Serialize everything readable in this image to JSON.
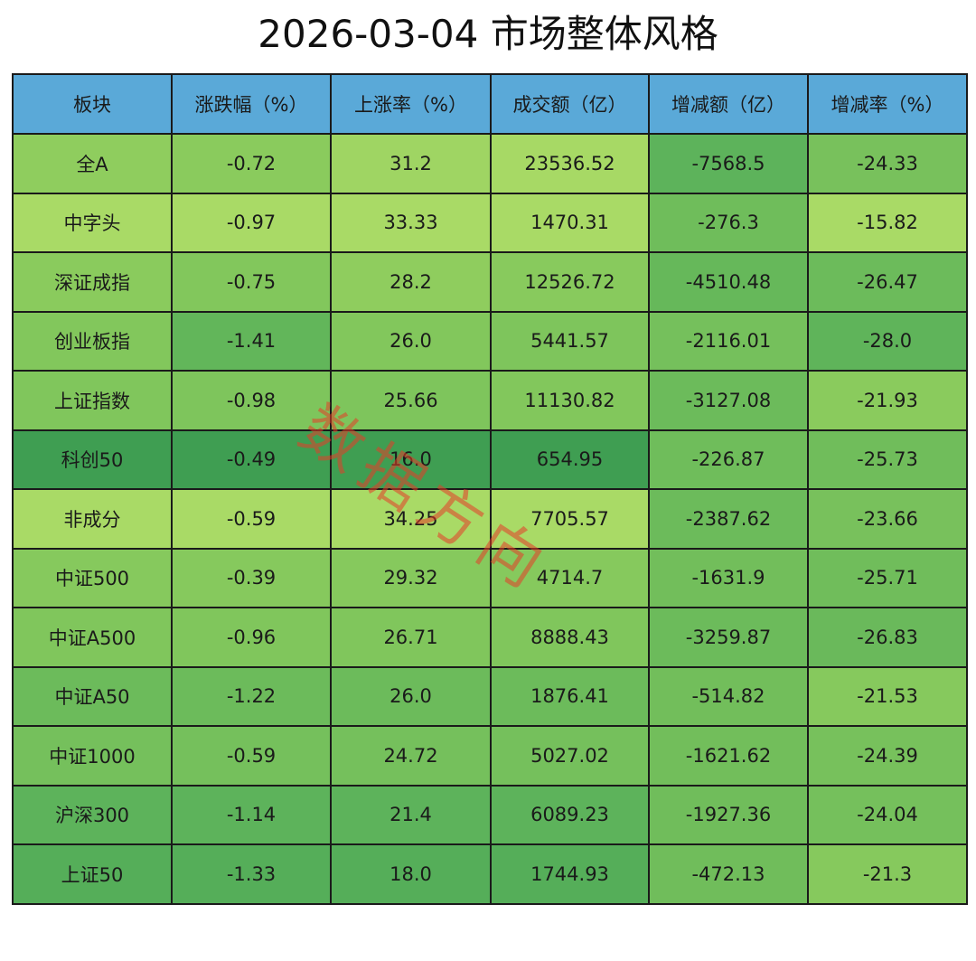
{
  "title": "2026-03-04 市场整体风格",
  "watermark": "数据方向",
  "chart_data": {
    "type": "table",
    "title": "2026-03-04 市场整体风格",
    "columns": [
      "板块",
      "涨跌幅（%）",
      "上涨率（%）",
      "成交额（亿）",
      "增减额（亿）",
      "增减率（%）"
    ],
    "rows": [
      [
        "全A",
        "-0.72",
        "31.2",
        "23536.52",
        "-7568.5",
        "-24.33"
      ],
      [
        "中字头",
        "-0.97",
        "33.33",
        "1470.31",
        "-276.3",
        "-15.82"
      ],
      [
        "深证成指",
        "-0.75",
        "28.2",
        "12526.72",
        "-4510.48",
        "-26.47"
      ],
      [
        "创业板指",
        "-1.41",
        "26.0",
        "5441.57",
        "-2116.01",
        "-28.0"
      ],
      [
        "上证指数",
        "-0.98",
        "25.66",
        "11130.82",
        "-3127.08",
        "-21.93"
      ],
      [
        "科创50",
        "-0.49",
        "16.0",
        "654.95",
        "-226.87",
        "-25.73"
      ],
      [
        "非成分",
        "-0.59",
        "34.25",
        "7705.57",
        "-2387.62",
        "-23.66"
      ],
      [
        "中证500",
        "-0.39",
        "29.32",
        "4714.7",
        "-1631.9",
        "-25.71"
      ],
      [
        "中证A500",
        "-0.96",
        "26.71",
        "8888.43",
        "-3259.87",
        "-26.83"
      ],
      [
        "中证A50",
        "-1.22",
        "26.0",
        "1876.41",
        "-514.82",
        "-21.53"
      ],
      [
        "中证1000",
        "-0.59",
        "24.72",
        "5027.02",
        "-1621.62",
        "-24.39"
      ],
      [
        "沪深300",
        "-1.14",
        "21.4",
        "6089.23",
        "-1927.36",
        "-24.04"
      ],
      [
        "上证50",
        "-1.33",
        "18.0",
        "1744.93",
        "-472.13",
        "-21.3"
      ]
    ],
    "header_color": "#5aa9d8",
    "cell_colors": [
      [
        "#8fcd5e",
        "#8acb5d",
        "#9fd563",
        "#a7d965",
        "#5db35b",
        "#78c15c"
      ],
      [
        "#a9da66",
        "#a9da66",
        "#a9da66",
        "#a9da66",
        "#6fbd5b",
        "#a9da66"
      ],
      [
        "#8acb5d",
        "#82c75c",
        "#8fcd5e",
        "#88ca5d",
        "#66b85a",
        "#6cbb5b"
      ],
      [
        "#82c75c",
        "#62b65a",
        "#82c75c",
        "#7ec55c",
        "#75c05c",
        "#5fb45a"
      ],
      [
        "#80c65c",
        "#7ec55c",
        "#7ec55c",
        "#82c75c",
        "#6cbb5b",
        "#8acb5d"
      ],
      [
        "#3f9e52",
        "#3f9e52",
        "#3f9e52",
        "#3f9e52",
        "#6fbd5b",
        "#70bd5b"
      ],
      [
        "#a9da66",
        "#a9da66",
        "#a9da66",
        "#a9da66",
        "#6cbb5b",
        "#78c15c"
      ],
      [
        "#86c95d",
        "#86c95d",
        "#86c95d",
        "#86c95d",
        "#72be5b",
        "#70bd5b"
      ],
      [
        "#80c65c",
        "#80c65c",
        "#80c65c",
        "#80c65c",
        "#6cbb5b",
        "#6ab95b"
      ],
      [
        "#6cbb5b",
        "#6cbb5b",
        "#6cbb5b",
        "#6cbb5b",
        "#72be5b",
        "#86c95d"
      ],
      [
        "#75c05c",
        "#75c05c",
        "#75c05c",
        "#75c05c",
        "#72be5b",
        "#77c15c"
      ],
      [
        "#5db35b",
        "#5db35b",
        "#5db35b",
        "#5db35b",
        "#70bd5b",
        "#75c05c"
      ],
      [
        "#55ae59",
        "#55ae59",
        "#55ae59",
        "#55ae59",
        "#70bd5b",
        "#86c95d"
      ]
    ]
  }
}
